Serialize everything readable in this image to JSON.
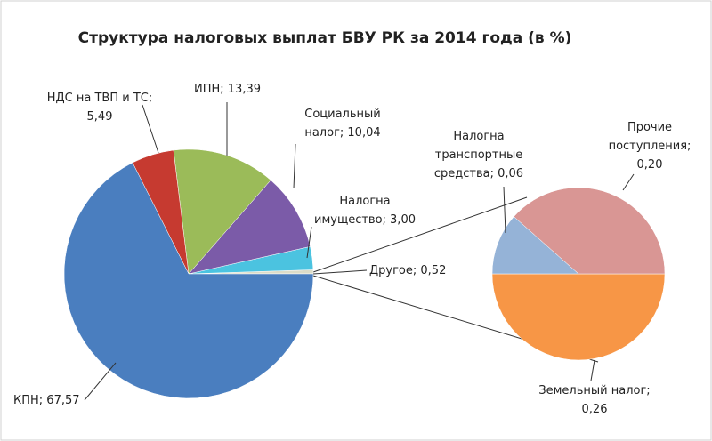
{
  "chart_data": [
    {
      "type": "pie",
      "title": "Структура налоговых выплат  БВУ РК за 2014 года (в %)",
      "values": [
        0.52,
        3.0,
        10.04,
        13.39,
        5.49,
        67.57
      ],
      "value_labels": [
        "Другое; 0,52",
        "Налогна\nимущество; 3,00",
        "Социальный\nналог; 10,04",
        "ИПН; 13,39",
        "НДС на ТВП и ТС;\n5,49",
        "КПН; 67,57"
      ],
      "colors": [
        "#dcdcc8",
        "#4bc3e0",
        "#7b5ba8",
        "#9bbb59",
        "#c63a30",
        "#4a7ebf"
      ]
    },
    {
      "type": "pie",
      "values": [
        0.26,
        0.2,
        0.06
      ],
      "value_labels": [
        "Земельный налог;\n0,26",
        "Прочие\nпоступления;\n0,20",
        "Налогна\nтранспортные\nсредства; 0,06"
      ],
      "colors": [
        "#f79646",
        "#d99694",
        "#95b3d7"
      ],
      "start_angle": 180
    }
  ]
}
